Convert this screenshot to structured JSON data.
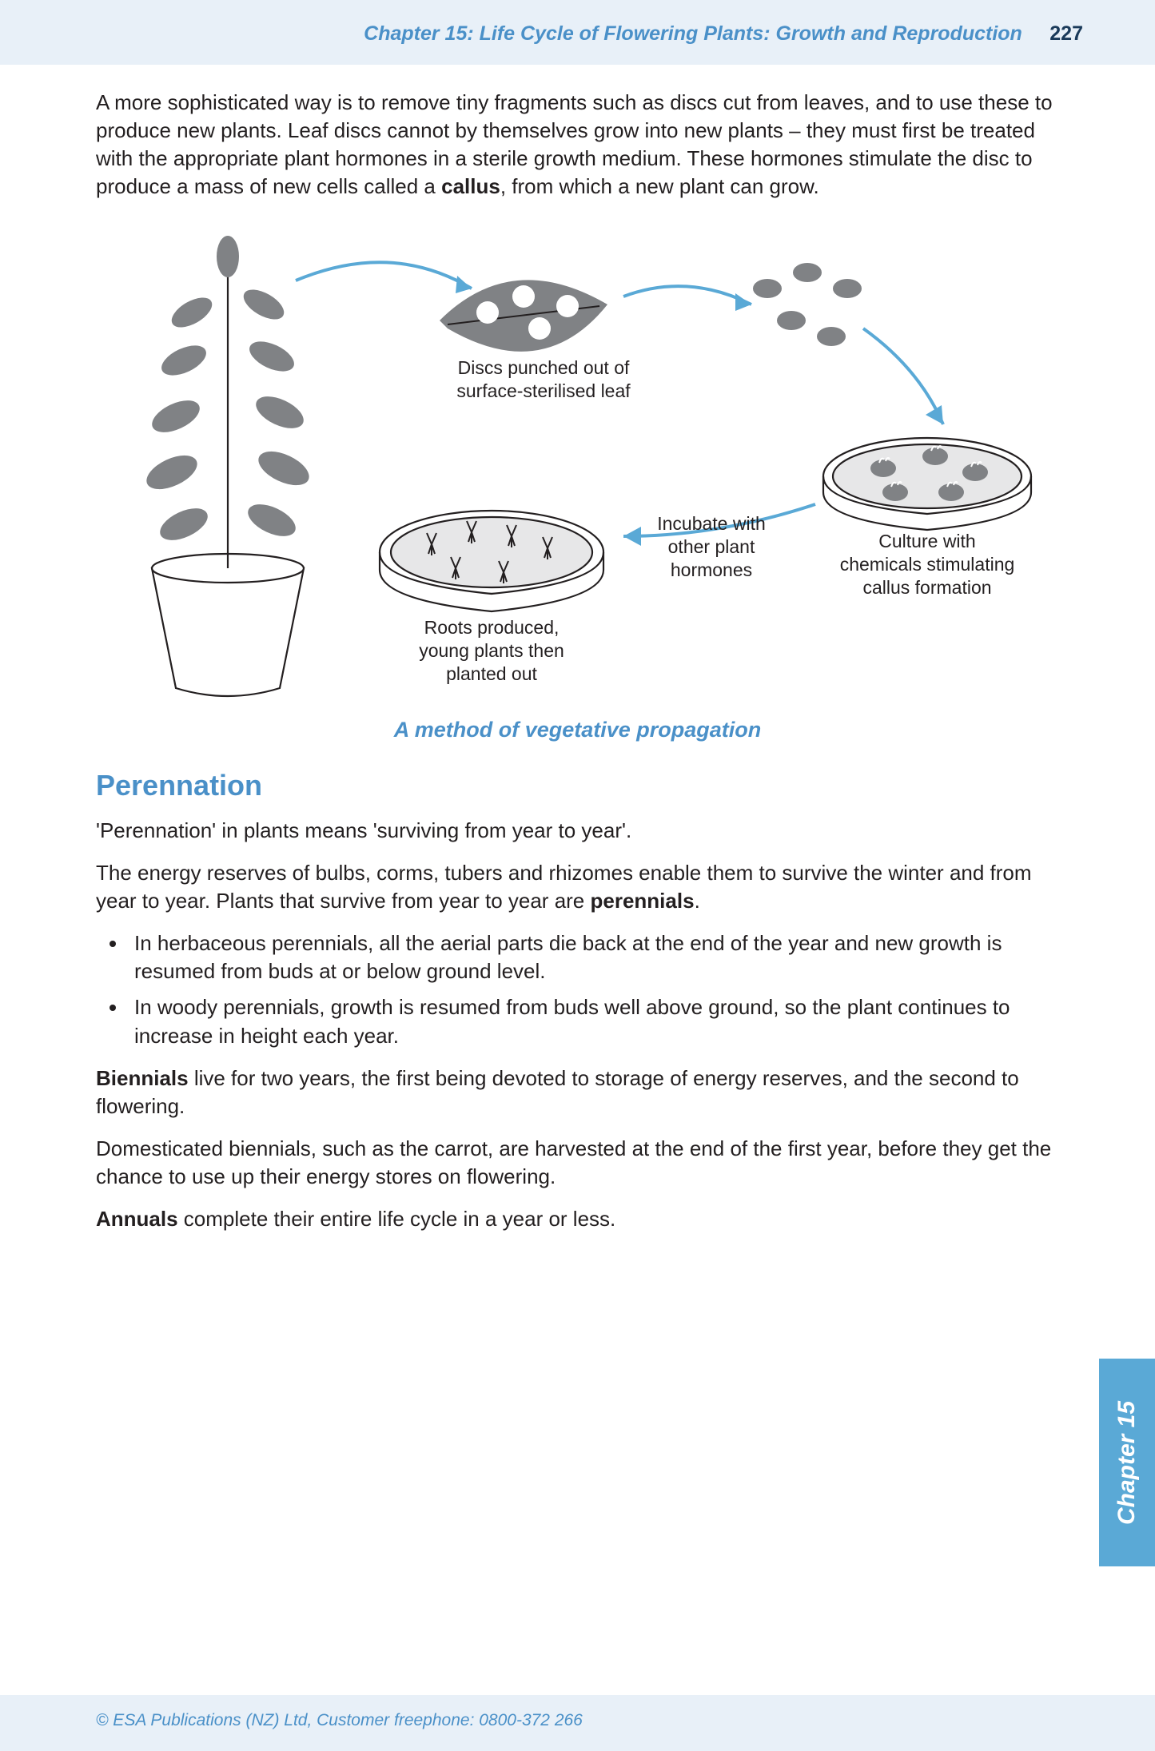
{
  "header": {
    "chapter_title": "Chapter 15: Life Cycle of Flowering Plants: Growth and Reproduction",
    "page_number": "227"
  },
  "colors": {
    "accent_blue": "#4a90c8",
    "header_bg": "#e8f0f8",
    "tab_bg": "#5aa9d6",
    "body_text": "#231f20",
    "diagram_grey": "#808285",
    "diagram_light": "#e7e7e8"
  },
  "intro": {
    "text_before_bold": "A more sophisticated way is to remove tiny fragments such as discs cut from leaves, and to use these to produce new plants. Leaf discs cannot by themselves grow into new plants – they must first be treated with the appropriate plant hormones in a sterile growth medium. These hormones stimulate the disc to produce a mass of new cells called a ",
    "bold_word": "callus",
    "text_after_bold": ", from which a new plant can grow."
  },
  "diagram": {
    "caption_leaf": "Discs punched out of\nsurface-sterilised leaf",
    "caption_culture": "Culture with\nchemicals stimulating\ncallus formation",
    "caption_incubate": "Incubate with\nother plant\nhormones",
    "caption_roots": "Roots produced,\nyoung plants then\nplanted out",
    "title": "A method of vegetative propagation"
  },
  "section": {
    "heading": "Perennation",
    "p1": "'Perennation' in plants means 'surviving from year to year'.",
    "p2_before": "The energy reserves of bulbs, corms, tubers and rhizomes enable them to survive the winter and from year to year. Plants that survive from year to year are ",
    "p2_bold": "perennials",
    "p2_after": ".",
    "bullet1": "In herbaceous perennials, all the aerial parts die back at the end of the year and new growth is resumed from buds at or below ground level.",
    "bullet2": "In woody perennials, growth is resumed from buds well above ground, so the plant continues to increase in height each year.",
    "p3_bold": "Biennials",
    "p3_after": " live for two years, the first being devoted to storage of energy reserves, and the second to flowering.",
    "p4": "Domesticated biennials, such as the carrot, are harvested at the end of the first year, before they get the chance to use up their energy stores on flowering.",
    "p5_bold": "Annuals",
    "p5_after": " complete their entire life cycle in a year or less."
  },
  "tab": {
    "label": "Chapter 15"
  },
  "footer": {
    "text": "© ESA Publications (NZ) Ltd, Customer freephone: 0800-372 266"
  }
}
